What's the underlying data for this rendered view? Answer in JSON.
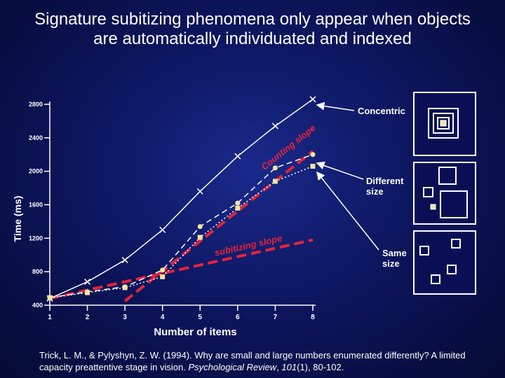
{
  "title_line1": "Signature subitizing phenomena only appear when objects",
  "title_line2": "are automatically individuated and indexed",
  "chart_data": {
    "type": "line",
    "xlabel": "Number of items",
    "ylabel": "Time (ms)",
    "xlim": [
      1,
      8
    ],
    "ylim": [
      400,
      2800
    ],
    "x_ticks": [
      "1",
      "2",
      "3",
      "4",
      "5",
      "6",
      "7",
      "8"
    ],
    "y_ticks": [
      "400",
      "800",
      "1200",
      "1600",
      "2000",
      "2400",
      "2800"
    ],
    "grid": false,
    "series": [
      {
        "name": "Concentric",
        "marker": "x",
        "line": "solid",
        "x": [
          1,
          2,
          3,
          4,
          5,
          6,
          7,
          8
        ],
        "y": [
          480,
          680,
          940,
          1300,
          1760,
          2180,
          2540,
          2860
        ]
      },
      {
        "name": "Different size",
        "marker": "circle",
        "line": "dashed",
        "x": [
          1,
          2,
          3,
          4,
          5,
          6,
          7,
          8
        ],
        "y": [
          490,
          560,
          620,
          820,
          1340,
          1620,
          2040,
          2200
        ]
      },
      {
        "name": "Same size",
        "marker": "square",
        "line": "dotted",
        "x": [
          1,
          2,
          3,
          4,
          5,
          6,
          7,
          8
        ],
        "y": [
          490,
          550,
          610,
          740,
          1210,
          1560,
          1880,
          2060
        ]
      }
    ],
    "slope_lines": [
      {
        "label": "Counting slope",
        "x": [
          3,
          8
        ],
        "y": [
          450,
          2240
        ]
      },
      {
        "label": "subitizing slope",
        "x": [
          1,
          8
        ],
        "y": [
          480,
          1180
        ]
      }
    ],
    "colors": {
      "axis": "#ffffff",
      "slope": "#e8233a",
      "label": "#ffffff"
    }
  },
  "legend": {
    "concentric": "Concentric",
    "different_size_line1": "Different",
    "different_size_line2": "size",
    "same_size_line1": "Same",
    "same_size_line2": "size"
  },
  "citation": {
    "authors": "Trick, L. M., & Pylyshyn, Z. W. (1994). Why are small and large numbers enumerated differently? A limited capacity preattentive stage in vision. ",
    "journal": "Psychological Review",
    "volume": "101",
    "issue_pages": "(1), 80-102."
  }
}
